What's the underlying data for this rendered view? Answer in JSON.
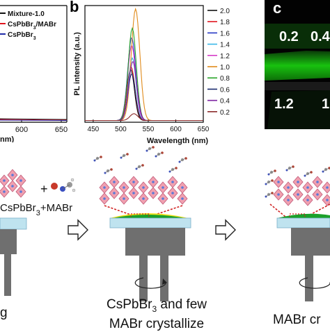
{
  "panel_labels": {
    "b": "b",
    "c": "c"
  },
  "panel_a": {
    "legend": [
      {
        "name": "Mixture-1.0",
        "color": "#111111"
      },
      {
        "name": "CsPbBr3/MABr",
        "color": "#e0141e"
      },
      {
        "name": "CsPbBr3",
        "color": "#1f2aa8"
      }
    ],
    "x_ticks": [
      "600",
      "650"
    ],
    "xlabel_fragment": "nm)"
  },
  "chart_data": {
    "type": "line",
    "xlabel": "Wavelength (nm)",
    "ylabel": "PL intensity (a.u.)",
    "xlim": [
      435,
      650
    ],
    "x_ticks": [
      450,
      500,
      550,
      600,
      650
    ],
    "legend_position": "right",
    "series": [
      {
        "name": "2.0",
        "peak": 0.45,
        "center": 518,
        "width": 15,
        "color": "#111111"
      },
      {
        "name": "1.8",
        "peak": 0.47,
        "center": 519,
        "width": 15,
        "color": "#e0141e"
      },
      {
        "name": "1.6",
        "peak": 0.73,
        "center": 520,
        "width": 16,
        "color": "#2436c4"
      },
      {
        "name": "1.4",
        "peak": 0.55,
        "center": 521,
        "width": 15,
        "color": "#39b8e8"
      },
      {
        "name": "1.2",
        "peak": 0.66,
        "center": 520,
        "width": 16,
        "color": "#d63bc8"
      },
      {
        "name": "1.0",
        "peak": 0.98,
        "center": 527,
        "width": 17,
        "color": "#e08a1a"
      },
      {
        "name": "0.8",
        "peak": 0.81,
        "center": 521,
        "width": 16,
        "color": "#2aa52a"
      },
      {
        "name": "0.6",
        "peak": 0.41,
        "center": 520,
        "width": 15,
        "color": "#1a2a6e"
      },
      {
        "name": "0.4",
        "peak": 0.52,
        "center": 522,
        "width": 16,
        "color": "#7a1fa0"
      },
      {
        "name": "0.2",
        "peak": 0.06,
        "center": 524,
        "width": 16,
        "color": "#8b2a2a"
      }
    ]
  },
  "panel_c": {
    "labels": [
      "0.2",
      "0.4",
      "1.2",
      "1"
    ]
  },
  "schematic": {
    "left_label": "CsPbBr3+MABr",
    "plus": "+",
    "captions": {
      "left_fragment": "g",
      "middle_line1": "CsPbBr3 and few",
      "middle_line2": "MABr crystallize",
      "right_fragment": "MABr cr"
    },
    "colors": {
      "substrate": "#bfe3ef",
      "film_green": "#1aa02a",
      "film_yellow": "#f2e21a",
      "chuck": "#777777",
      "octahedra": "#f0a0b0"
    }
  }
}
